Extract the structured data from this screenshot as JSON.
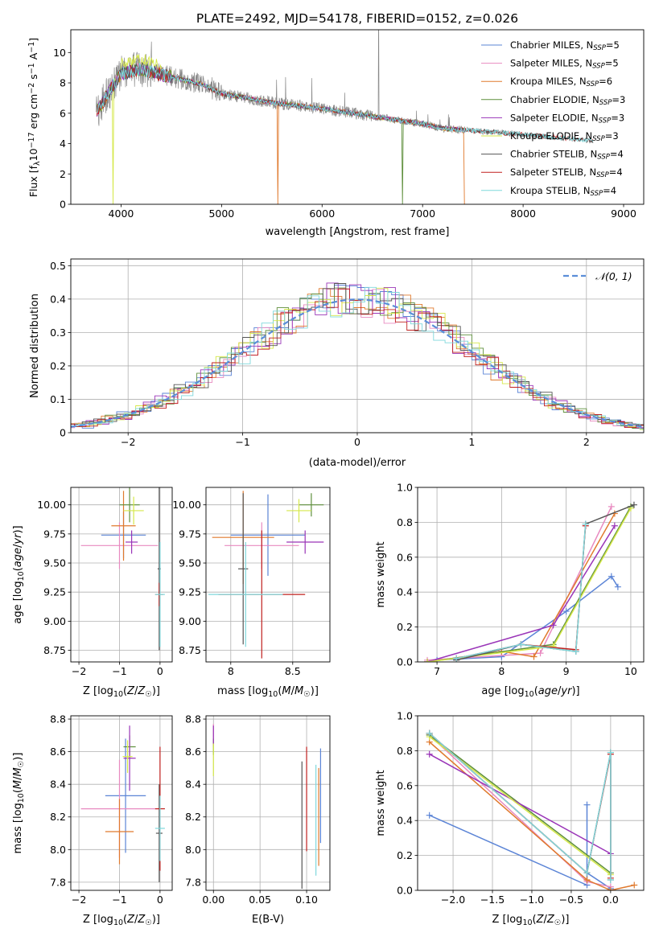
{
  "figure": {
    "title": "PLATE=2492, MJD=54178, FIBERID=0152, z=0.026"
  },
  "colors": {
    "chabrier_miles": "#5b84d6",
    "salpeter_miles": "#e88ac0",
    "kroupa_miles": "#e07a2e",
    "chabrier_elodie": "#5e8f3c",
    "salpeter_elodie": "#9a35b8",
    "kroupa_elodie": "#d5e84a",
    "chabrier_stelib": "#555555",
    "salpeter_stelib": "#c0201e",
    "kroupa_stelib": "#7fd8dc",
    "data": "#888888",
    "gaussian": "#5b8ed8"
  },
  "chart_data": [
    {
      "id": "spectrum",
      "type": "line",
      "title": "PLATE=2492, MJD=54178, FIBERID=0152, z=0.026",
      "xlabel": "wavelength [Angstrom, rest frame]",
      "ylabel": "Flux [fλ10⁻¹⁷ erg cm⁻² s⁻¹ A⁻¹]",
      "xlim": [
        3500,
        9200
      ],
      "ylim": [
        0,
        11.5
      ],
      "xticks": [
        4000,
        5000,
        6000,
        7000,
        8000,
        9000
      ],
      "yticks": [
        0,
        2,
        4,
        6,
        8,
        10
      ],
      "grid": false,
      "legend_position": "top-right",
      "legend": [
        {
          "label": "Chabrier MILES, N",
          "sub": "SSP",
          "count": "=5",
          "color_key": "chabrier_miles"
        },
        {
          "label": "Salpeter MILES, N",
          "sub": "SSP",
          "count": "=5",
          "color_key": "salpeter_miles"
        },
        {
          "label": "Kroupa MILES, N",
          "sub": "SSP",
          "count": "=6",
          "color_key": "kroupa_miles"
        },
        {
          "label": "Chabrier ELODIE, N",
          "sub": "SSP",
          "count": "=3",
          "color_key": "chabrier_elodie"
        },
        {
          "label": "Salpeter ELODIE, N",
          "sub": "SSP",
          "count": "=3",
          "color_key": "salpeter_elodie"
        },
        {
          "label": "Kroupa ELODIE, N",
          "sub": "SSP",
          "count": "=3",
          "color_key": "kroupa_elodie"
        },
        {
          "label": "Chabrier STELIB, N",
          "sub": "SSP",
          "count": "=4",
          "color_key": "chabrier_stelib"
        },
        {
          "label": "Salpeter STELIB, N",
          "sub": "SSP",
          "count": "=4",
          "color_key": "salpeter_stelib"
        },
        {
          "label": "Kroupa STELIB, N",
          "sub": "SSP",
          "count": "=4",
          "color_key": "kroupa_stelib"
        }
      ],
      "continuum_x": [
        3750,
        3900,
        4000,
        4200,
        4500,
        4800,
        5000,
        5500,
        6000,
        6500,
        7000,
        7200,
        7400,
        8000,
        8500,
        9000
      ],
      "continuum_y": [
        6.0,
        7.6,
        8.6,
        8.9,
        8.4,
        7.9,
        7.3,
        6.7,
        6.3,
        5.8,
        5.3,
        5.0,
        4.9,
        4.6,
        4.3,
        4.0
      ]
    },
    {
      "id": "residuals",
      "type": "step",
      "xlabel": "(data-model)/error",
      "ylabel": "Normed distribution",
      "xlim": [
        -2.5,
        2.5
      ],
      "ylim": [
        0,
        0.52
      ],
      "xticks": [
        -2,
        -1,
        0,
        1,
        2
      ],
      "yticks": [
        0.0,
        0.1,
        0.2,
        0.3,
        0.4,
        0.5
      ],
      "grid": true,
      "legend_position": "top-right",
      "gaussian_label": "𝒩(0, 1)"
    },
    {
      "id": "age_vs_Z",
      "type": "errorbar",
      "xlabel": "Z [log10(Z/Z☉)]",
      "ylabel": "age [log10(age/yr)]",
      "xlim": [
        -2.2,
        0.3
      ],
      "ylim": [
        8.65,
        10.15
      ],
      "xticks": [
        -2,
        -1,
        0
      ],
      "yticks": [
        8.75,
        9.0,
        9.25,
        9.5,
        9.75,
        10.0
      ],
      "grid": true,
      "points": [
        {
          "color_key": "chabrier_miles",
          "x": -0.9,
          "xerr": 0.55,
          "y": 9.74,
          "yerr": 0.2
        },
        {
          "color_key": "salpeter_miles",
          "x": -1.0,
          "xerr": 0.95,
          "y": 9.65,
          "yerr": 0.2
        },
        {
          "color_key": "kroupa_miles",
          "x": -0.9,
          "xerr": 0.3,
          "y": 9.82,
          "yerr": 0.3
        },
        {
          "color_key": "chabrier_elodie",
          "x": -0.75,
          "xerr": 0.25,
          "y": 10.0,
          "yerr": 0.15
        },
        {
          "color_key": "salpeter_elodie",
          "x": -0.7,
          "xerr": 0.15,
          "y": 9.68,
          "yerr": 0.1
        },
        {
          "color_key": "kroupa_elodie",
          "x": -0.65,
          "xerr": 0.25,
          "y": 9.95,
          "yerr": 0.12
        },
        {
          "color_key": "chabrier_stelib",
          "x": -0.02,
          "xerr": 0.04,
          "y": 9.45,
          "yerr": 0.7
        },
        {
          "color_key": "salpeter_stelib",
          "x": -0.02,
          "xerr": 0.1,
          "y": 9.23,
          "yerr": 0.1
        },
        {
          "color_key": "kroupa_stelib",
          "x": 0.0,
          "xerr": 0.12,
          "y": 9.23,
          "yerr": 0.45
        }
      ]
    },
    {
      "id": "age_vs_mass",
      "type": "errorbar",
      "xlabel": "mass [log10(M/M☉)]",
      "ylabel": "",
      "xlim": [
        7.8,
        8.8
      ],
      "ylim": [
        8.65,
        10.15
      ],
      "xticks": [
        8.0,
        8.5
      ],
      "yticks": [
        8.75,
        9.0,
        9.25,
        9.5,
        9.75,
        10.0
      ],
      "grid": true,
      "points": [
        {
          "color_key": "chabrier_miles",
          "x": 8.3,
          "xerr": 0.3,
          "y": 9.74,
          "yerr": 0.35
        },
        {
          "color_key": "salpeter_miles",
          "x": 8.25,
          "xerr": 0.3,
          "y": 9.65,
          "yerr": 0.2
        },
        {
          "color_key": "kroupa_miles",
          "x": 8.1,
          "xerr": 0.25,
          "y": 9.72,
          "yerr": 0.4
        },
        {
          "color_key": "chabrier_elodie",
          "x": 8.65,
          "xerr": 0.1,
          "y": 10.0,
          "yerr": 0.1
        },
        {
          "color_key": "salpeter_elodie",
          "x": 8.6,
          "xerr": 0.15,
          "y": 9.68,
          "yerr": 0.1
        },
        {
          "color_key": "kroupa_elodie",
          "x": 8.55,
          "xerr": 0.1,
          "y": 9.95,
          "yerr": 0.1
        },
        {
          "color_key": "chabrier_stelib",
          "x": 8.1,
          "xerr": 0.04,
          "y": 9.45,
          "yerr": 0.65
        },
        {
          "color_key": "salpeter_stelib",
          "x": 8.25,
          "xerr": 0.35,
          "y": 9.23,
          "yerr": 0.55
        },
        {
          "color_key": "kroupa_stelib",
          "x": 8.12,
          "xerr": 0.3,
          "y": 9.23,
          "yerr": 0.45
        }
      ]
    },
    {
      "id": "weight_vs_age",
      "type": "line",
      "xlabel": "age [log10(age/yr)]",
      "ylabel": "mass weight",
      "xlim": [
        6.7,
        10.2
      ],
      "ylim": [
        0,
        1.0
      ],
      "xticks": [
        7,
        8,
        9,
        10
      ],
      "yticks": [
        0.0,
        0.2,
        0.4,
        0.6,
        0.8,
        1.0
      ],
      "grid": true,
      "series": [
        {
          "color_key": "chabrier_miles",
          "x": [
            7.0,
            8.0,
            9.0,
            9.7,
            9.8
          ],
          "y": [
            0.01,
            0.03,
            0.29,
            0.49,
            0.43
          ]
        },
        {
          "color_key": "salpeter_miles",
          "x": [
            6.85,
            8.6,
            9.7
          ],
          "y": [
            0.01,
            0.05,
            0.89
          ]
        },
        {
          "color_key": "kroupa_miles",
          "x": [
            6.85,
            8.0,
            8.5,
            9.75
          ],
          "y": [
            0.0,
            0.06,
            0.03,
            0.85
          ]
        },
        {
          "color_key": "chabrier_elodie",
          "x": [
            6.85,
            8.8,
            10.0
          ],
          "y": [
            0.0,
            0.1,
            0.89
          ]
        },
        {
          "color_key": "salpeter_elodie",
          "x": [
            6.85,
            8.8,
            9.75
          ],
          "y": [
            0.0,
            0.21,
            0.78
          ]
        },
        {
          "color_key": "kroupa_elodie",
          "x": [
            6.85,
            8.8,
            10.0
          ],
          "y": [
            0.0,
            0.09,
            0.88
          ]
        },
        {
          "color_key": "chabrier_stelib",
          "x": [
            7.3,
            8.3,
            9.15,
            9.3,
            10.05
          ],
          "y": [
            0.01,
            0.1,
            0.06,
            0.79,
            0.9
          ]
        },
        {
          "color_key": "salpeter_stelib",
          "x": [
            7.3,
            8.3,
            9.15,
            9.3
          ],
          "y": [
            0.02,
            0.1,
            0.07,
            0.78
          ]
        },
        {
          "color_key": "kroupa_stelib",
          "x": [
            7.3,
            8.3,
            9.15,
            9.3
          ],
          "y": [
            0.02,
            0.1,
            0.06,
            0.79
          ]
        }
      ]
    },
    {
      "id": "mass_vs_Z",
      "type": "errorbar",
      "xlabel": "Z [log10(Z/Z☉)]",
      "ylabel": "mass [log10(M/M☉)]",
      "xlim": [
        -2.2,
        0.3
      ],
      "ylim": [
        7.75,
        8.82
      ],
      "xticks": [
        -2,
        -1,
        0
      ],
      "yticks": [
        7.8,
        8.0,
        8.2,
        8.4,
        8.6,
        8.8
      ],
      "grid": true,
      "points": [
        {
          "color_key": "chabrier_miles",
          "x": -0.85,
          "xerr": 0.5,
          "y": 8.33,
          "yerr": 0.35
        },
        {
          "color_key": "salpeter_miles",
          "x": -1.0,
          "xerr": 0.95,
          "y": 8.25,
          "yerr": 0.3
        },
        {
          "color_key": "kroupa_miles",
          "x": -1.0,
          "xerr": 0.35,
          "y": 8.11,
          "yerr": 0.2
        },
        {
          "color_key": "chabrier_elodie",
          "x": -0.75,
          "xerr": 0.15,
          "y": 8.63,
          "yerr": 0.07
        },
        {
          "color_key": "salpeter_elodie",
          "x": -0.75,
          "xerr": 0.15,
          "y": 8.56,
          "yerr": 0.2
        },
        {
          "color_key": "kroupa_elodie",
          "x": -0.8,
          "xerr": 0.12,
          "y": 8.57,
          "yerr": 0.1
        },
        {
          "color_key": "chabrier_stelib",
          "x": -0.02,
          "xerr": 0.08,
          "y": 8.1,
          "yerr": 0.3
        },
        {
          "color_key": "salpeter_stelib",
          "x": 0.0,
          "xerr": 0.12,
          "y": 8.25,
          "yerr": 0.38
        },
        {
          "color_key": "kroupa_stelib",
          "x": 0.0,
          "xerr": 0.12,
          "y": 8.13,
          "yerr": 0.2
        }
      ]
    },
    {
      "id": "mass_vs_ebv",
      "type": "errorbar",
      "xlabel": "E(B-V)",
      "ylabel": "",
      "xlim": [
        -0.008,
        0.125
      ],
      "ylim": [
        7.75,
        8.82
      ],
      "xticks": [
        0.0,
        0.05,
        0.1
      ],
      "xticklabels": [
        "0.00",
        "0.05",
        "0.10"
      ],
      "yticks": [
        7.8,
        8.0,
        8.2,
        8.4,
        8.6,
        8.8
      ],
      "grid": true,
      "points": [
        {
          "color_key": "chabrier_miles",
          "x": 0.115,
          "xerr": 0,
          "y": 8.33,
          "yerr": 0.29
        },
        {
          "color_key": "salpeter_miles",
          "x": 0.0,
          "xerr": 0,
          "y": 8.7,
          "yerr": 0.07
        },
        {
          "color_key": "kroupa_miles",
          "x": 0.113,
          "xerr": 0,
          "y": 8.2,
          "yerr": 0.3
        },
        {
          "color_key": "chabrier_elodie",
          "x": 0.0,
          "xerr": 0,
          "y": 8.63,
          "yerr": 0.05
        },
        {
          "color_key": "salpeter_elodie",
          "x": 0.0,
          "xerr": 0,
          "y": 8.7,
          "yerr": 0.06
        },
        {
          "color_key": "kroupa_elodie",
          "x": 0.0,
          "xerr": 0,
          "y": 8.55,
          "yerr": 0.1
        },
        {
          "color_key": "chabrier_stelib",
          "x": 0.095,
          "xerr": 0,
          "y": 8.15,
          "yerr": 0.39
        },
        {
          "color_key": "salpeter_stelib",
          "x": 0.1,
          "xerr": 0,
          "y": 8.31,
          "yerr": 0.32
        },
        {
          "color_key": "kroupa_stelib",
          "x": 0.11,
          "xerr": 0,
          "y": 8.18,
          "yerr": 0.34
        }
      ]
    },
    {
      "id": "weight_vs_Z",
      "type": "line",
      "xlabel": "Z [log10(Z/Z☉)]",
      "ylabel": "mass weight",
      "xlim": [
        -2.45,
        0.42
      ],
      "ylim": [
        0,
        1.0
      ],
      "xticks": [
        -2.0,
        -1.5,
        -1.0,
        -0.5,
        0.0
      ],
      "xticklabels": [
        "−2.0",
        "−1.5",
        "−1.0",
        "−0.5",
        "0.0"
      ],
      "yticks": [
        0.0,
        0.2,
        0.4,
        0.6,
        0.8,
        1.0
      ],
      "grid": true,
      "series": [
        {
          "color_key": "chabrier_miles",
          "x": [
            -2.3,
            -0.3,
            -0.3,
            -0.3,
            0.0
          ],
          "y": [
            0.43,
            0.03,
            0.49,
            0.1,
            0.01
          ]
        },
        {
          "color_key": "salpeter_miles",
          "x": [
            -2.3,
            -0.3,
            0.0
          ],
          "y": [
            0.89,
            0.05,
            0.02
          ]
        },
        {
          "color_key": "kroupa_miles",
          "x": [
            -2.3,
            -0.3,
            0.0,
            0.3
          ],
          "y": [
            0.85,
            0.06,
            0.0,
            0.03
          ]
        },
        {
          "color_key": "chabrier_elodie",
          "x": [
            -2.3,
            0.0
          ],
          "y": [
            0.89,
            0.1
          ]
        },
        {
          "color_key": "salpeter_elodie",
          "x": [
            -2.3,
            0.0
          ],
          "y": [
            0.78,
            0.21
          ]
        },
        {
          "color_key": "kroupa_elodie",
          "x": [
            -2.3,
            0.0
          ],
          "y": [
            0.88,
            0.09
          ]
        },
        {
          "color_key": "chabrier_stelib",
          "x": [
            -2.3,
            -0.3,
            0.0,
            0.0
          ],
          "y": [
            0.9,
            0.1,
            0.79,
            0.06
          ]
        },
        {
          "color_key": "salpeter_stelib",
          "x": [
            -2.3,
            -0.3,
            0.0,
            0.0
          ],
          "y": [
            0.9,
            0.1,
            0.78,
            0.07
          ]
        },
        {
          "color_key": "kroupa_stelib",
          "x": [
            -2.3,
            -0.3,
            0.0,
            0.0
          ],
          "y": [
            0.9,
            0.1,
            0.79,
            0.06
          ]
        }
      ]
    }
  ]
}
